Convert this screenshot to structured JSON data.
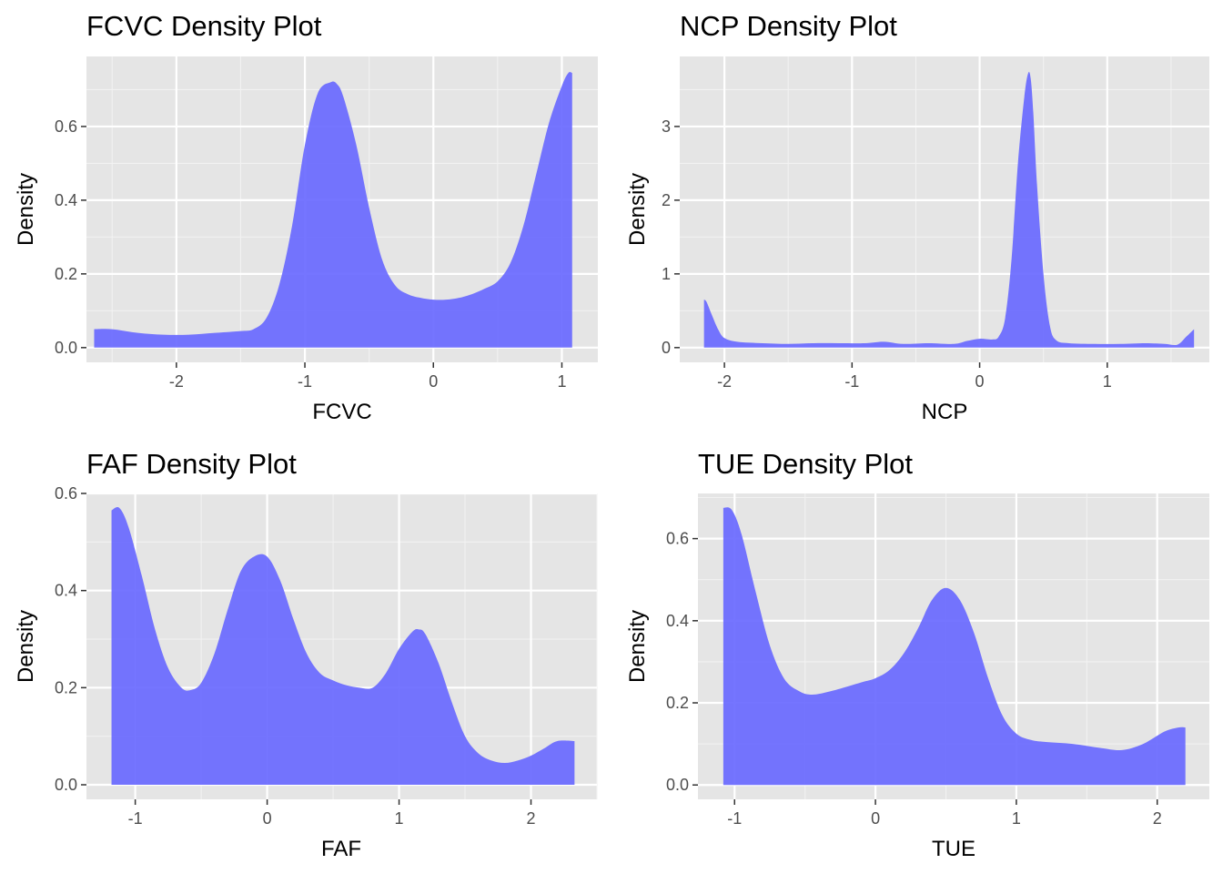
{
  "colors": {
    "panel": "#e5e5e5",
    "fill": "#6666ff",
    "grid": "#ffffff",
    "tick_text": "#4d4d4d"
  },
  "chart_data": [
    {
      "type": "area",
      "title": "FCVC Density Plot",
      "xlabel": "FCVC",
      "ylabel": "Density",
      "xlim": [
        -2.7,
        1.28
      ],
      "ylim": [
        -0.04,
        0.79
      ],
      "xticks": [
        -2,
        -1,
        0,
        1
      ],
      "xtick_labels": [
        "-2",
        "-1",
        "0",
        "1"
      ],
      "yticks": [
        0,
        0.2,
        0.4,
        0.6
      ],
      "ytick_labels": [
        "0.0",
        "0.2",
        "0.4",
        "0.6"
      ],
      "x": [
        -2.64,
        -2.5,
        -2.3,
        -2.1,
        -1.9,
        -1.7,
        -1.5,
        -1.4,
        -1.3,
        -1.2,
        -1.1,
        -1.0,
        -0.9,
        -0.8,
        -0.75,
        -0.7,
        -0.6,
        -0.5,
        -0.4,
        -0.3,
        -0.2,
        -0.1,
        0.0,
        0.1,
        0.2,
        0.3,
        0.4,
        0.5,
        0.6,
        0.7,
        0.8,
        0.9,
        1.0,
        1.05,
        1.08
      ],
      "y": [
        0.05,
        0.05,
        0.04,
        0.035,
        0.035,
        0.04,
        0.045,
        0.05,
        0.08,
        0.17,
        0.33,
        0.55,
        0.69,
        0.72,
        0.715,
        0.68,
        0.55,
        0.38,
        0.24,
        0.17,
        0.145,
        0.135,
        0.13,
        0.13,
        0.135,
        0.145,
        0.16,
        0.18,
        0.23,
        0.33,
        0.47,
        0.61,
        0.71,
        0.745,
        0.745
      ]
    },
    {
      "type": "area",
      "title": "NCP Density Plot",
      "xlabel": "NCP",
      "ylabel": "Density",
      "xlim": [
        -2.35,
        1.8
      ],
      "ylim": [
        -0.2,
        3.95
      ],
      "xticks": [
        -2,
        -1,
        0,
        1
      ],
      "xtick_labels": [
        "-2",
        "-1",
        "0",
        "1"
      ],
      "yticks": [
        0,
        1,
        2,
        3
      ],
      "ytick_labels": [
        "0",
        "1",
        "2",
        "3"
      ],
      "x": [
        -2.16,
        -2.14,
        -2.1,
        -2.05,
        -2.0,
        -1.9,
        -1.7,
        -1.5,
        -1.3,
        -1.1,
        -0.9,
        -0.75,
        -0.6,
        -0.4,
        -0.2,
        -0.1,
        0.0,
        0.1,
        0.15,
        0.2,
        0.25,
        0.3,
        0.35,
        0.38,
        0.4,
        0.42,
        0.45,
        0.5,
        0.55,
        0.6,
        0.7,
        0.9,
        1.1,
        1.3,
        1.45,
        1.55,
        1.62,
        1.68
      ],
      "y": [
        0.65,
        0.62,
        0.45,
        0.25,
        0.13,
        0.08,
        0.06,
        0.05,
        0.06,
        0.06,
        0.06,
        0.08,
        0.05,
        0.06,
        0.05,
        0.09,
        0.12,
        0.11,
        0.15,
        0.4,
        1.2,
        2.5,
        3.4,
        3.72,
        3.65,
        3.2,
        2.2,
        1.0,
        0.3,
        0.1,
        0.06,
        0.05,
        0.05,
        0.06,
        0.05,
        0.04,
        0.15,
        0.25
      ]
    },
    {
      "type": "area",
      "title": "FAF Density Plot",
      "xlabel": "FAF",
      "ylabel": "Density",
      "xlim": [
        -1.37,
        2.5
      ],
      "ylim": [
        -0.03,
        0.6
      ],
      "xticks": [
        -1,
        0,
        1,
        2
      ],
      "xtick_labels": [
        "-1",
        "0",
        "1",
        "2"
      ],
      "yticks": [
        0,
        0.2,
        0.4,
        0.6
      ],
      "ytick_labels": [
        "0.0",
        "0.2",
        "0.4",
        "0.6"
      ],
      "x": [
        -1.18,
        -1.12,
        -1.05,
        -0.95,
        -0.85,
        -0.75,
        -0.65,
        -0.58,
        -0.5,
        -0.4,
        -0.3,
        -0.2,
        -0.1,
        0.0,
        0.1,
        0.2,
        0.3,
        0.4,
        0.5,
        0.6,
        0.7,
        0.8,
        0.9,
        1.0,
        1.1,
        1.15,
        1.2,
        1.3,
        1.4,
        1.5,
        1.6,
        1.7,
        1.8,
        1.9,
        2.0,
        2.1,
        2.2,
        2.33
      ],
      "y": [
        0.565,
        0.57,
        0.53,
        0.43,
        0.32,
        0.24,
        0.2,
        0.195,
        0.21,
        0.27,
        0.36,
        0.44,
        0.47,
        0.47,
        0.42,
        0.34,
        0.27,
        0.23,
        0.215,
        0.205,
        0.2,
        0.2,
        0.23,
        0.28,
        0.315,
        0.32,
        0.31,
        0.25,
        0.17,
        0.1,
        0.065,
        0.05,
        0.045,
        0.05,
        0.06,
        0.075,
        0.09,
        0.09
      ]
    },
    {
      "type": "area",
      "title": "TUE Density Plot",
      "xlabel": "TUE",
      "ylabel": "Density",
      "xlim": [
        -1.26,
        2.37
      ],
      "ylim": [
        -0.035,
        0.71
      ],
      "xticks": [
        -1,
        0,
        1,
        2
      ],
      "xtick_labels": [
        "-1",
        "0",
        "1",
        "2"
      ],
      "yticks": [
        0,
        0.2,
        0.4,
        0.6
      ],
      "ytick_labels": [
        "0.0",
        "0.2",
        "0.4",
        "0.6"
      ],
      "x": [
        -1.08,
        -1.02,
        -0.95,
        -0.85,
        -0.75,
        -0.65,
        -0.55,
        -0.45,
        -0.3,
        -0.1,
        0.0,
        0.1,
        0.2,
        0.3,
        0.4,
        0.5,
        0.6,
        0.7,
        0.8,
        0.9,
        1.0,
        1.1,
        1.2,
        1.4,
        1.6,
        1.75,
        1.9,
        2.05,
        2.15,
        2.2
      ],
      "y": [
        0.675,
        0.67,
        0.61,
        0.47,
        0.34,
        0.26,
        0.23,
        0.22,
        0.23,
        0.25,
        0.26,
        0.28,
        0.32,
        0.38,
        0.45,
        0.48,
        0.45,
        0.37,
        0.26,
        0.17,
        0.125,
        0.11,
        0.105,
        0.1,
        0.09,
        0.085,
        0.1,
        0.13,
        0.14,
        0.14
      ]
    }
  ]
}
